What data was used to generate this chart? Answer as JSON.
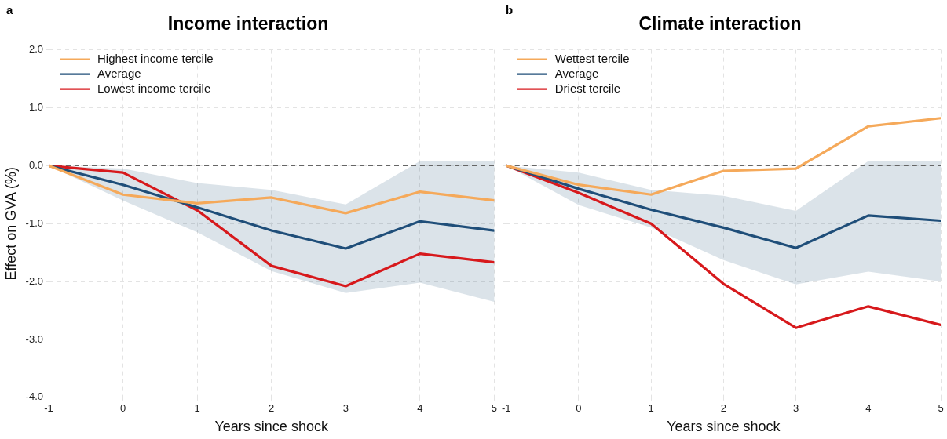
{
  "chart_data": [
    {
      "type": "line",
      "title": "Income interaction",
      "xlabel": "Years since shock",
      "ylabel": "Effect on GVA (%)",
      "annotations": [
        "a"
      ],
      "x": [
        -1,
        0,
        1,
        2,
        3,
        4,
        5
      ],
      "series": [
        {
          "name": "Highest income tercile",
          "color": "#f5a95a",
          "values": [
            0,
            -0.5,
            -0.65,
            -0.55,
            -0.82,
            -0.45,
            -0.6
          ]
        },
        {
          "name": "Average",
          "color": "#1f4e79",
          "values": [
            0,
            -0.33,
            -0.72,
            -1.12,
            -1.43,
            -0.96,
            -1.12
          ],
          "lower": [
            0,
            -0.6,
            -1.15,
            -1.82,
            -2.2,
            -2.02,
            -2.35
          ],
          "upper": [
            0,
            -0.05,
            -0.3,
            -0.42,
            -0.67,
            0.08,
            0.08
          ]
        },
        {
          "name": "Lowest income tercile",
          "color": "#d7191c",
          "values": [
            0,
            -0.12,
            -0.77,
            -1.73,
            -2.08,
            -1.52,
            -1.67
          ]
        }
      ],
      "xlim": [
        -1,
        5
      ],
      "xticks": [
        -1,
        0,
        1,
        2,
        3,
        4,
        5
      ],
      "ylim": [
        -4,
        2
      ],
      "yticks": [
        {
          "value": -4,
          "label": "-4.0"
        },
        {
          "value": -3,
          "label": "-3.0"
        },
        {
          "value": -2,
          "label": "-2.0"
        },
        {
          "value": -1,
          "label": "-1.0"
        },
        {
          "value": 0,
          "label": "0.0"
        },
        {
          "value": 1,
          "label": "1.0"
        },
        {
          "value": 2,
          "label": "2.0"
        }
      ],
      "ref_lines": [
        {
          "axis": "y",
          "value": 0,
          "color": "#666666",
          "line_style": "dashed"
        }
      ],
      "grid": true,
      "legend": "top left",
      "marker": "none",
      "line_style": "solid"
    },
    {
      "type": "line",
      "title": "Climate interaction",
      "xlabel": "Years since shock",
      "annotations": [
        "b"
      ],
      "yticks": [
        -4,
        -3,
        -2,
        -1,
        0,
        1,
        2
      ],
      "x": [
        -1,
        0,
        1,
        2,
        3,
        4,
        5
      ],
      "series": [
        {
          "name": "Wettest tercile",
          "color": "#f5a95a",
          "values": [
            0,
            -0.33,
            -0.5,
            -0.09,
            -0.05,
            0.68,
            0.82
          ]
        },
        {
          "name": "Average",
          "color": "#1f4e79",
          "values": [
            0,
            -0.4,
            -0.76,
            -1.07,
            -1.42,
            -0.86,
            -0.95
          ],
          "lower": [
            0,
            -0.68,
            -1.07,
            -1.63,
            -2.05,
            -1.83,
            -2.0
          ],
          "upper": [
            0,
            -0.12,
            -0.42,
            -0.52,
            -0.78,
            0.08,
            0.08
          ]
        },
        {
          "name": "Driest tercile",
          "color": "#d7191c",
          "values": [
            0,
            -0.47,
            -1.0,
            -2.04,
            -2.8,
            -2.43,
            -2.75
          ]
        }
      ],
      "xlim": [
        -1,
        5
      ],
      "xticks": [
        -1,
        0,
        1,
        2,
        3,
        4,
        5
      ],
      "ylim": [
        -4,
        2
      ],
      "ref_lines": [
        {
          "axis": "y",
          "value": 0,
          "color": "#666666",
          "line_style": "dashed"
        }
      ],
      "tick_labels": "x",
      "grid": true,
      "legend": "top left",
      "marker": "none",
      "line_style": "solid"
    }
  ]
}
